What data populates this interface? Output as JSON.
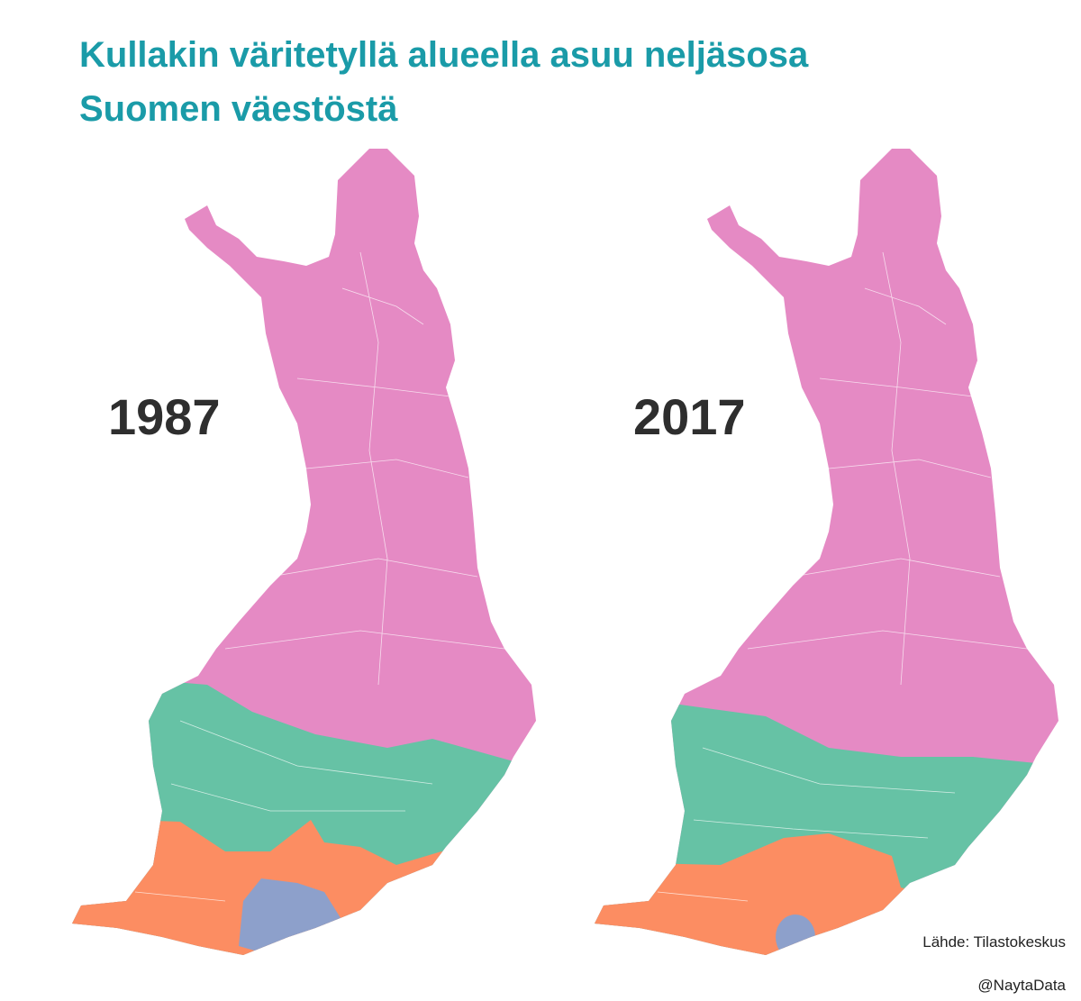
{
  "header": {
    "title_lines": [
      "Kullakin väritetyllä alueella asuu neljäsosa",
      "Suomen väestöstä"
    ]
  },
  "maps": [
    {
      "label": "1987"
    },
    {
      "label": "2017"
    }
  ],
  "footer": {
    "source": "Lähde: Tilastokeskus",
    "credit": "@NaytaData"
  }
}
